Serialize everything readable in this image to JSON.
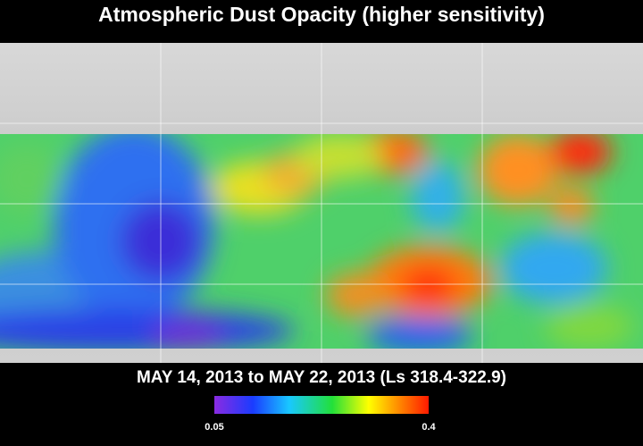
{
  "header": {
    "title": "Atmospheric Dust Opacity (higher sensitivity)"
  },
  "footer": {
    "date_range": "MAY 14, 2013 to MAY 22, 2013 (Ls 318.4-322.9)"
  },
  "colorbar": {
    "min": 0.05,
    "max": 0.4
  }
}
